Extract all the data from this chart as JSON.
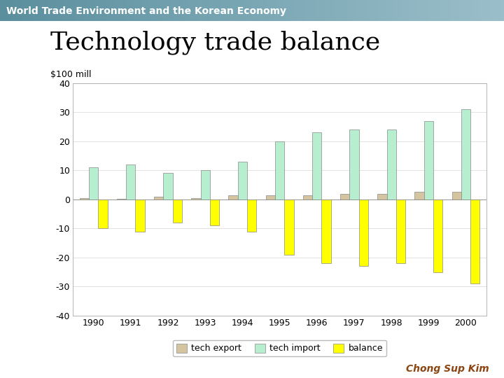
{
  "title": "Technology trade balance",
  "header": "World Trade Environment and the Korean Economy",
  "ylabel": "$100 mill",
  "footer": "Chong Sup Kim",
  "years": [
    1990,
    1991,
    1992,
    1993,
    1994,
    1995,
    1996,
    1997,
    1998,
    1999,
    2000
  ],
  "tech_export": [
    0.5,
    0.3,
    1.0,
    0.5,
    1.5,
    1.5,
    1.5,
    2.0,
    2.0,
    2.5,
    2.5
  ],
  "tech_import": [
    11,
    12,
    9,
    10,
    13,
    20,
    23,
    24,
    24,
    27,
    31
  ],
  "balance": [
    -10,
    -11,
    -8,
    -9,
    -11,
    -19,
    -22,
    -23,
    -22,
    -25,
    -29
  ],
  "bar_width": 0.25,
  "ylim": [
    -40,
    40
  ],
  "yticks": [
    -40,
    -30,
    -20,
    -10,
    0,
    10,
    20,
    30,
    40
  ],
  "export_color": "#D4C4A0",
  "import_color": "#B8EED0",
  "balance_color": "#FFFF00",
  "header_bg_start": "#5B8F9E",
  "header_bg_end": "#9BBFCA",
  "footer_color": "#8B4513",
  "title_fontsize": 26,
  "header_fontsize": 10,
  "label_fontsize": 9,
  "legend_fontsize": 9
}
